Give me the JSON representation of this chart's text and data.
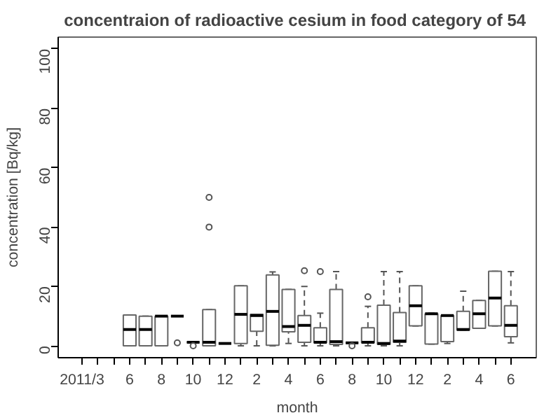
{
  "chart_data": {
    "type": "box",
    "title": "concentraion of radioactive cesium in food category of  54",
    "xlabel": "month",
    "ylabel": "concentration [Bq/kg]",
    "categories": [
      "2011/3",
      null,
      null,
      "6",
      null,
      "8",
      null,
      "10",
      null,
      "12",
      null,
      "2",
      null,
      "4",
      null,
      "6",
      null,
      "8",
      null,
      "10",
      null,
      "12",
      null,
      "2",
      null,
      "4",
      null,
      "6"
    ],
    "ylim": [
      -4,
      104
    ],
    "yticks": [
      0,
      20,
      40,
      60,
      80,
      100
    ],
    "grid": false,
    "line_style": "dashed",
    "boxes": [
      null,
      null,
      null,
      {
        "low": 0,
        "q1": 0,
        "median": 5.5,
        "q3": 10.4,
        "high": 10.4
      },
      {
        "low": 0,
        "q1": 0,
        "median": 5.5,
        "q3": 10,
        "high": 10
      },
      {
        "low": 0,
        "q1": 0,
        "median": 10,
        "q3": 10,
        "high": 10
      },
      {
        "low": 10,
        "q1": 10,
        "median": 10,
        "q3": 10,
        "high": 10,
        "outliers": [
          1
        ]
      },
      {
        "low": 1.2,
        "q1": 1.2,
        "median": 1.2,
        "q3": 1.2,
        "high": 1.2,
        "outliers": [
          0
        ]
      },
      {
        "low": 0,
        "q1": 0,
        "median": 1.2,
        "q3": 12.2,
        "high": 12.2,
        "outliers": [
          50,
          40
        ]
      },
      {
        "low": 0.8,
        "q1": 0.8,
        "median": 0.8,
        "q3": 0.8,
        "high": 0.8
      },
      {
        "low": 0,
        "q1": 0.8,
        "median": 10.6,
        "q3": 20.2,
        "high": 20.2
      },
      {
        "low": 0,
        "q1": 4.9,
        "median": 10.2,
        "q3": 10.6,
        "high": 10.6
      },
      {
        "low": 0,
        "q1": 0.2,
        "median": 11.6,
        "q3": 23.9,
        "high": 24.9
      },
      {
        "low": 0.8,
        "q1": 4.7,
        "median": 6.5,
        "q3": 19,
        "high": 19
      },
      {
        "low": 0,
        "q1": 1.2,
        "median": 6.9,
        "q3": 10.2,
        "high": 20,
        "outliers": [
          25.3
        ]
      },
      {
        "low": 0,
        "q1": 1,
        "median": 1.2,
        "q3": 6.1,
        "high": 11,
        "outliers": [
          25
        ]
      },
      {
        "low": 0,
        "q1": 0.5,
        "median": 1.4,
        "q3": 19,
        "high": 25
      },
      {
        "low": 1,
        "q1": 1,
        "median": 1,
        "q3": 1,
        "high": 1,
        "outliers": [
          0
        ]
      },
      {
        "low": 0,
        "q1": 1,
        "median": 1.2,
        "q3": 6.1,
        "high": 13.3,
        "outliers": [
          16.5
        ]
      },
      {
        "low": 0,
        "q1": 0.5,
        "median": 0.8,
        "q3": 13.7,
        "high": 25
      },
      {
        "low": 0,
        "q1": 1.2,
        "median": 1.6,
        "q3": 11.2,
        "high": 25
      },
      {
        "low": 6.7,
        "q1": 6.7,
        "median": 13.5,
        "q3": 20.2,
        "high": 20.2
      },
      {
        "low": 0.6,
        "q1": 0.6,
        "median": 10.8,
        "q3": 10.8,
        "high": 11
      },
      {
        "low": 0.8,
        "q1": 1.4,
        "median": 10.2,
        "q3": 10.2,
        "high": 10.2
      },
      {
        "low": 5.3,
        "q1": 5.3,
        "median": 5.5,
        "q3": 11.6,
        "high": 18.4
      },
      {
        "low": 5.9,
        "q1": 5.9,
        "median": 10.8,
        "q3": 15.3,
        "high": 15.3
      },
      {
        "low": 6.7,
        "q1": 6.7,
        "median": 16.1,
        "q3": 25.1,
        "high": 25.1
      },
      {
        "low": 1,
        "q1": 3.1,
        "median": 6.9,
        "q3": 13.5,
        "high": 25
      }
    ]
  }
}
